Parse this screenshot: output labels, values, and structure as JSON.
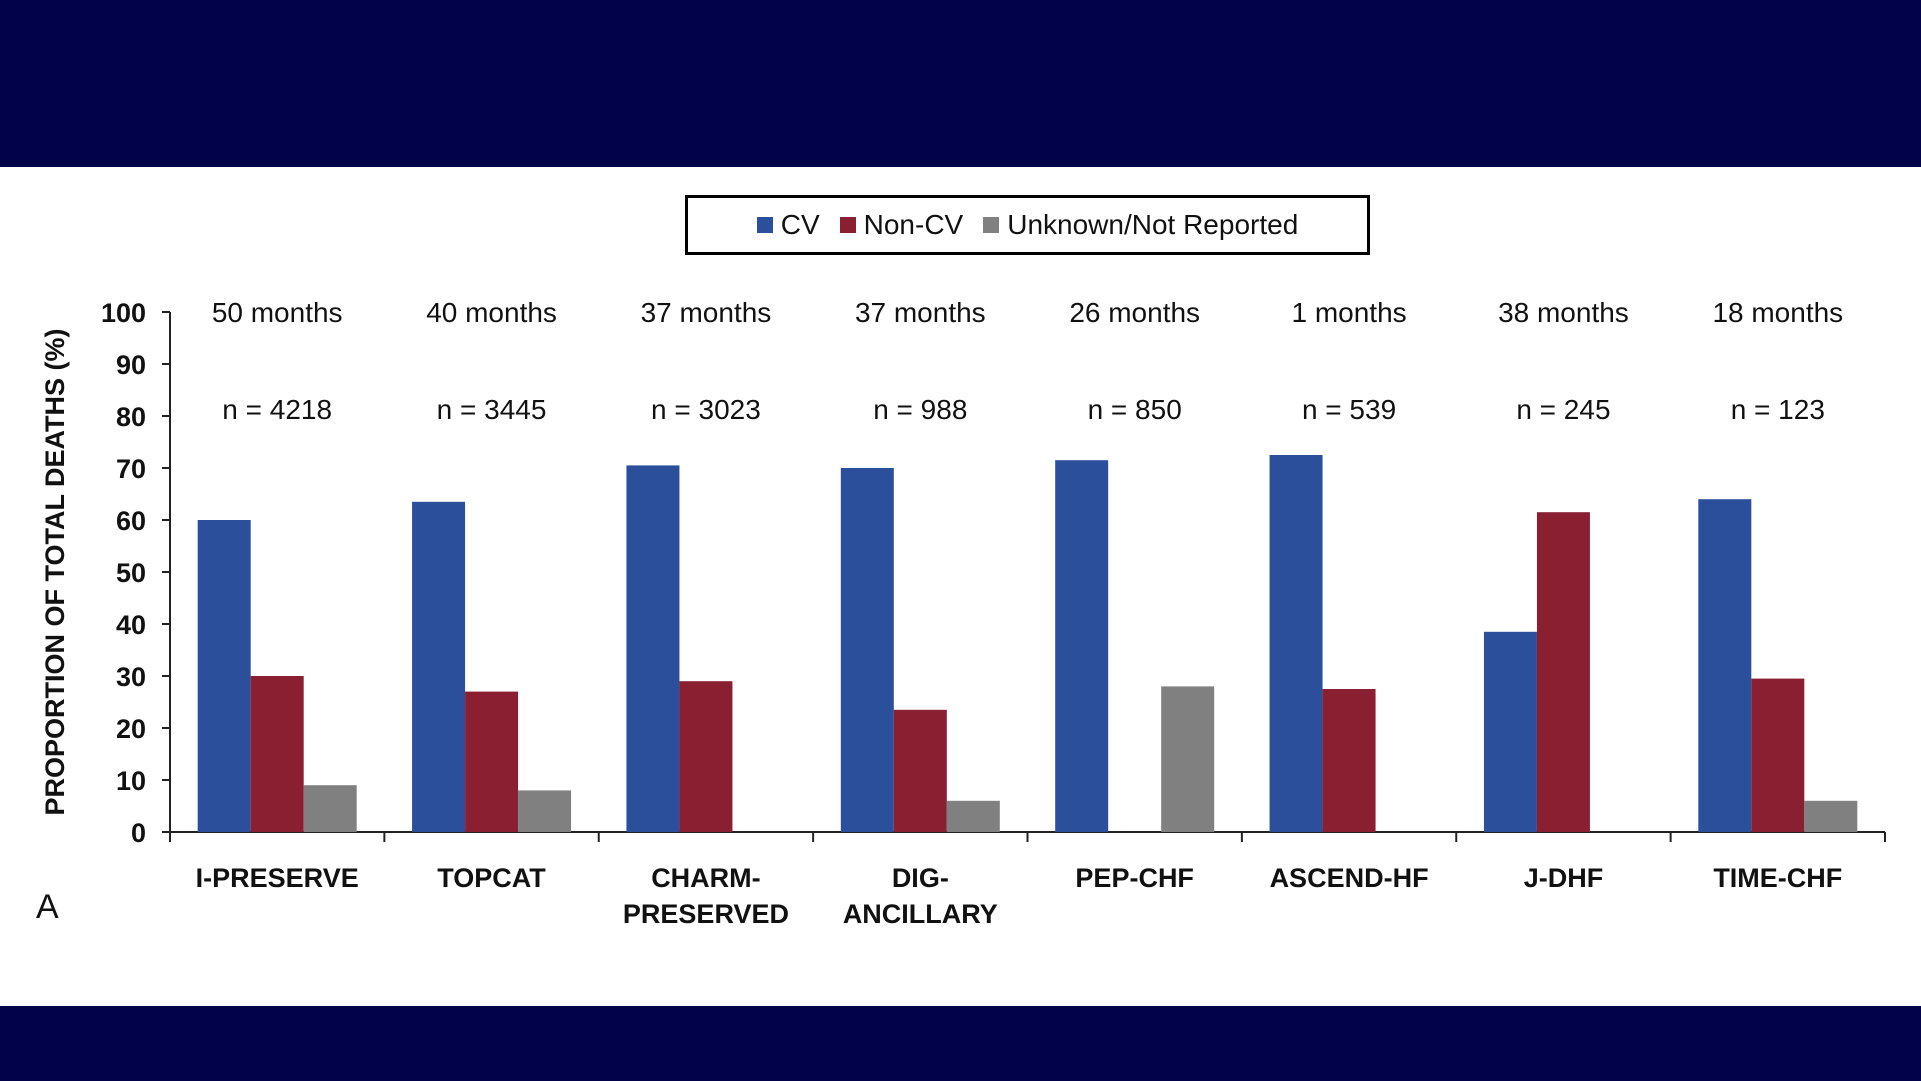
{
  "colors": {
    "band": "#02024a",
    "cv": "#2c4f9c",
    "noncv": "#8a1f31",
    "unknown": "#808080",
    "axis": "#222222"
  },
  "panel_label": "A",
  "chart_data": {
    "type": "bar",
    "ylabel": "PROPORTION OF TOTAL DEATHS (%)",
    "ylim": [
      0,
      100
    ],
    "yticks": [
      0,
      10,
      20,
      30,
      40,
      50,
      60,
      70,
      80,
      90,
      100
    ],
    "legend_position": "top-center",
    "categories": [
      {
        "label": [
          "I-PRESERVE"
        ],
        "duration": "50 months",
        "n": "n = 4218"
      },
      {
        "label": [
          "TOPCAT"
        ],
        "duration": "40 months",
        "n": "n = 3445"
      },
      {
        "label": [
          "CHARM-",
          "PRESERVED"
        ],
        "duration": "37 months",
        "n": "n = 3023"
      },
      {
        "label": [
          "DIG-",
          "ANCILLARY"
        ],
        "duration": "37 months",
        "n": "n = 988"
      },
      {
        "label": [
          "PEP-CHF"
        ],
        "duration": "26 months",
        "n": "n = 850"
      },
      {
        "label": [
          "ASCEND-HF"
        ],
        "duration": "1 months",
        "n": "n = 539"
      },
      {
        "label": [
          "J-DHF"
        ],
        "duration": "38 months",
        "n": "n = 245"
      },
      {
        "label": [
          "TIME-CHF"
        ],
        "duration": "18 months",
        "n": "n = 123"
      }
    ],
    "series": [
      {
        "name": "CV",
        "color_key": "cv",
        "values": [
          60,
          63.5,
          70.5,
          70,
          71.5,
          72.5,
          38.5,
          64
        ]
      },
      {
        "name": "Non-CV",
        "color_key": "noncv",
        "values": [
          30,
          27,
          29,
          23.5,
          0,
          27.5,
          61.5,
          29.5
        ]
      },
      {
        "name": "Unknown/Not Reported",
        "color_key": "unknown",
        "values": [
          9,
          8,
          0,
          6,
          28,
          0,
          0,
          6
        ]
      }
    ]
  }
}
